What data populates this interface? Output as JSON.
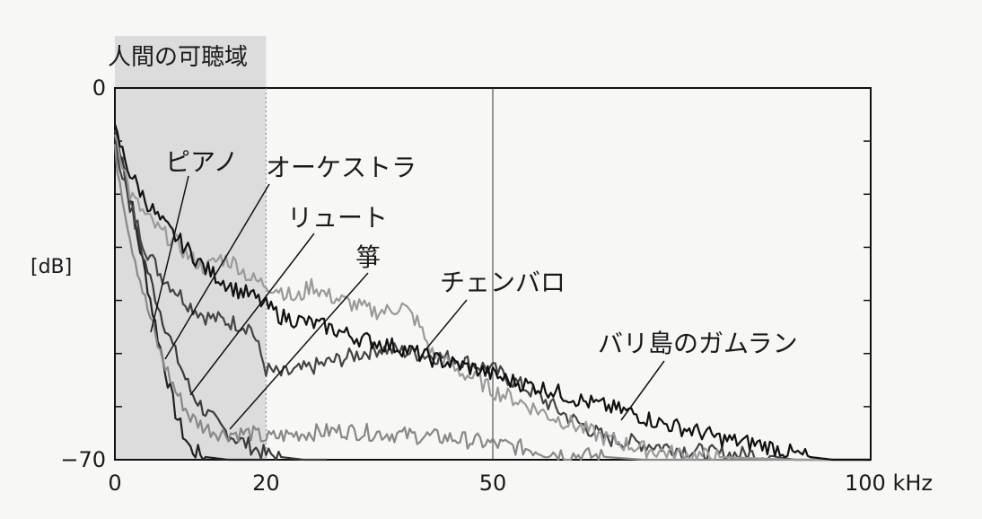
{
  "chart_data": {
    "type": "line",
    "band_label": "人間の可聴域",
    "band_range": [
      0,
      20
    ],
    "ylabel": "[dB]",
    "xlim": [
      0,
      100
    ],
    "ylim": [
      -70,
      0
    ],
    "x_ticks": [
      {
        "value": 0,
        "label": "0"
      },
      {
        "value": 20,
        "label": "20"
      },
      {
        "value": 50,
        "label": "50"
      },
      {
        "value": 100,
        "label": "100 kHz"
      }
    ],
    "y_ticks": [
      {
        "value": 0,
        "label": "0"
      },
      {
        "value": -70,
        "label": "−70"
      }
    ],
    "vline_at": 50,
    "series": [
      {
        "name": "ピアノ",
        "color": "#222222",
        "x": [
          0,
          1,
          2,
          3,
          4,
          5,
          6,
          7,
          8,
          9,
          10,
          12,
          15,
          20
        ],
        "y": [
          -8,
          -13,
          -20,
          -28,
          -35,
          -42,
          -49,
          -55,
          -61,
          -65,
          -68,
          -69.5,
          -70,
          -70
        ]
      },
      {
        "name": "オーケストラ",
        "color": "#3a3a3a",
        "x": [
          0,
          1,
          2,
          4,
          6,
          8,
          10,
          12,
          14,
          16,
          18,
          20,
          22,
          25,
          28
        ],
        "y": [
          -8,
          -14,
          -22,
          -33,
          -42,
          -50,
          -57,
          -61,
          -64,
          -66,
          -67.5,
          -69,
          -69.5,
          -70,
          -70
        ]
      },
      {
        "name": "リュート",
        "color": "#444444",
        "x": [
          0,
          2,
          4,
          6,
          8,
          10,
          12,
          15,
          18,
          20,
          22,
          25,
          30,
          35,
          40,
          45,
          50,
          55,
          60,
          65,
          70,
          75,
          80,
          85,
          90,
          95,
          100
        ],
        "y": [
          -10,
          -22,
          -30,
          -35,
          -38,
          -41,
          -43,
          -44,
          -45,
          -53,
          -54,
          -53,
          -51,
          -49,
          -50,
          -51,
          -53,
          -57,
          -62,
          -66,
          -67,
          -68,
          -69,
          -69,
          -70,
          -70,
          -70
        ]
      },
      {
        "name": "箏",
        "color": "#888888",
        "x": [
          0,
          2,
          4,
          6,
          8,
          10,
          12,
          14,
          16,
          18,
          20,
          22,
          25,
          30,
          35,
          40,
          45,
          50,
          55,
          60,
          65,
          70,
          75,
          80,
          85,
          90,
          95,
          100
        ],
        "y": [
          -12,
          -28,
          -40,
          -50,
          -57,
          -62,
          -64,
          -65,
          -65,
          -65,
          -66,
          -65.5,
          -65,
          -64.5,
          -65,
          -65.5,
          -66,
          -67,
          -68,
          -69,
          -69.5,
          -70,
          -70,
          -70,
          -70,
          -70,
          -70,
          -70
        ]
      },
      {
        "name": "チェンバロ",
        "color": "#9a9a9a",
        "x": [
          0,
          2,
          4,
          6,
          8,
          10,
          12,
          14,
          16,
          18,
          20,
          22,
          24,
          26,
          28,
          30,
          32,
          34,
          36,
          38,
          40,
          42,
          45,
          48,
          50,
          52,
          55,
          58,
          60,
          65,
          70,
          75,
          80,
          90,
          100
        ],
        "y": [
          -8,
          -20,
          -24,
          -27,
          -29,
          -32,
          -34,
          -32,
          -33,
          -36,
          -37,
          -38,
          -40,
          -37,
          -39,
          -40,
          -41,
          -42,
          -42,
          -41,
          -44,
          -50,
          -53,
          -55,
          -57,
          -58,
          -60,
          -62,
          -63,
          -66,
          -68,
          -69,
          -69.5,
          -70,
          -70
        ]
      },
      {
        "name": "バリ島のガムラン",
        "color": "#111111",
        "x": [
          0,
          1,
          2,
          4,
          6,
          8,
          10,
          12,
          14,
          16,
          18,
          20,
          22,
          25,
          28,
          30,
          32,
          35,
          38,
          40,
          42,
          45,
          48,
          50,
          52,
          55,
          58,
          60,
          62,
          65,
          68,
          70,
          72,
          75,
          78,
          80,
          82,
          85,
          88,
          90,
          92,
          95,
          98,
          100
        ],
        "y": [
          -8,
          -12,
          -16,
          -21,
          -25,
          -28,
          -31,
          -34,
          -36,
          -38,
          -39,
          -41,
          -43,
          -44,
          -45,
          -46,
          -47,
          -48,
          -49,
          -50,
          -51,
          -52,
          -53,
          -54,
          -55,
          -56,
          -57,
          -58,
          -59,
          -60,
          -61,
          -62,
          -63,
          -64,
          -65,
          -66,
          -66.5,
          -67,
          -68,
          -69,
          -69.5,
          -70,
          -70,
          -70
        ]
      }
    ],
    "annotations": [
      {
        "series": "ピアノ",
        "text": "ピアノ"
      },
      {
        "series": "オーケストラ",
        "text": "オーケストラ"
      },
      {
        "series": "リュート",
        "text": "リュート"
      },
      {
        "series": "箏",
        "text": "箏"
      },
      {
        "series": "チェンバロ",
        "text": "チェンバロ"
      },
      {
        "series": "バリ島のガムラン",
        "text": "バリ島のガムラン"
      }
    ]
  }
}
